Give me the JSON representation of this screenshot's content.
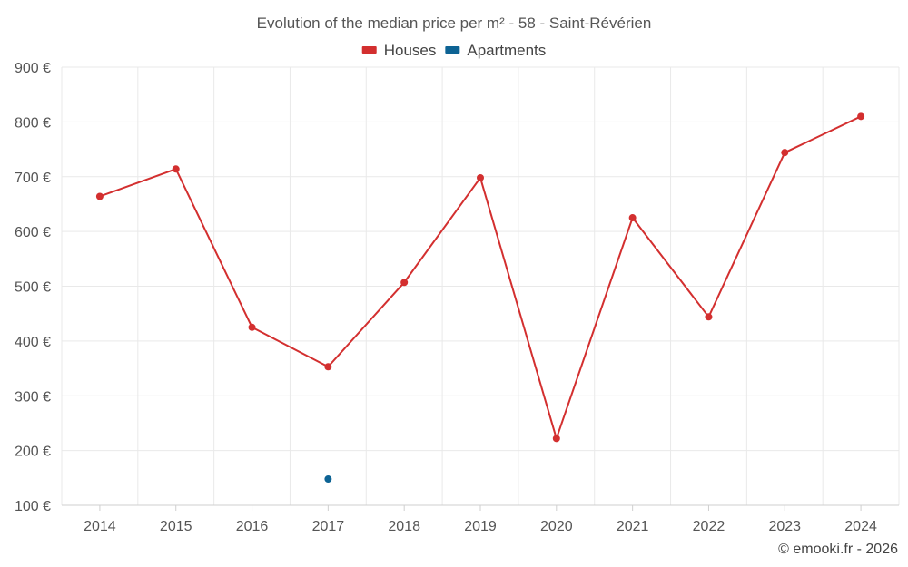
{
  "chart_data": {
    "type": "line",
    "title": "Evolution of the median price per m² - 58 - Saint-Révérien",
    "categories": [
      "2014",
      "2015",
      "2016",
      "2017",
      "2018",
      "2019",
      "2020",
      "2021",
      "2022",
      "2023",
      "2024"
    ],
    "series": [
      {
        "name": "Houses",
        "color": "#d32f2f",
        "values": [
          664,
          714,
          425,
          353,
          507,
          698,
          222,
          625,
          444,
          744,
          810
        ]
      },
      {
        "name": "Apartments",
        "color": "#0d6394",
        "values": [
          null,
          null,
          null,
          148,
          null,
          null,
          null,
          null,
          null,
          null,
          null
        ]
      }
    ],
    "ylim": [
      100,
      900
    ],
    "yticks": [
      100,
      200,
      300,
      400,
      500,
      600,
      700,
      800,
      900
    ],
    "ytick_suffix": " €",
    "grid": true,
    "legend": "top-center",
    "xlabel": "",
    "ylabel": ""
  },
  "credit": "© emooki.fr - 2026"
}
